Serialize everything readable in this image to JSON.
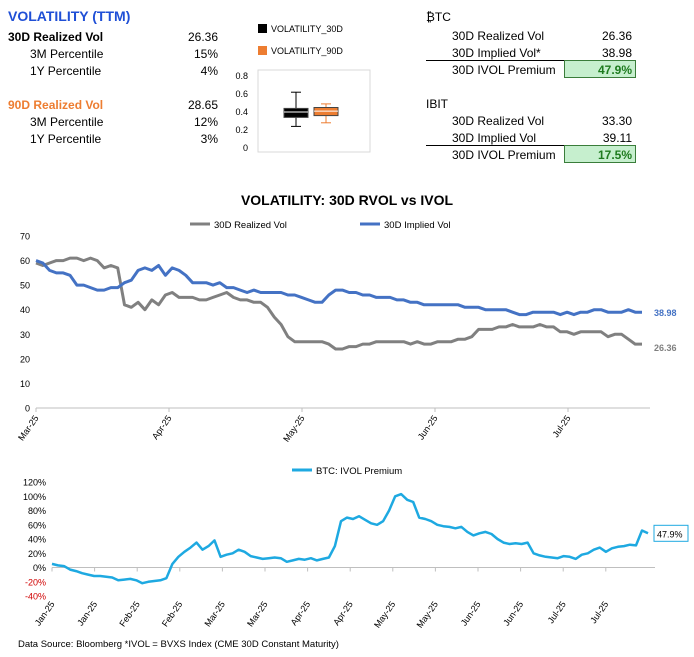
{
  "left_panel": {
    "title": "VOLATILITY (TTM)",
    "title_color": "#1f4fd6",
    "rv30": {
      "label": "30D Realized Vol",
      "value": "26.36"
    },
    "rv30_rows": [
      {
        "label": "3M Percentile",
        "value": "15%"
      },
      {
        "label": "1Y Percentile",
        "value": "4%"
      }
    ],
    "rv90": {
      "label": "90D Realized Vol",
      "value": "28.65",
      "color": "#ed7d31"
    },
    "rv90_rows": [
      {
        "label": "3M Percentile",
        "value": "12%"
      },
      {
        "label": "1Y Percentile",
        "value": "3%"
      }
    ]
  },
  "boxplot": {
    "legend": [
      "VOLATILITY_30D",
      "VOLATILITY_90D"
    ],
    "colors": [
      "#000000",
      "#ed7d31"
    ],
    "yticks": [
      "0.8",
      "0.6",
      "0.4",
      "0.2",
      "0"
    ],
    "box30": {
      "min": 0.24,
      "q1": 0.34,
      "median": 0.4,
      "q3": 0.44,
      "max": 0.62
    },
    "box90": {
      "min": 0.28,
      "q1": 0.36,
      "median": 0.41,
      "q3": 0.45,
      "max": 0.49
    }
  },
  "right_panel": {
    "btc": {
      "header": "₿TC",
      "rows": [
        {
          "label": "30D Realized Vol",
          "value": "26.36"
        },
        {
          "label": "30D Implied Vol*",
          "value": "38.98"
        }
      ],
      "premium": {
        "label": "30D IVOL Premium",
        "value": "47.9%"
      }
    },
    "ibit": {
      "header": "IBIT",
      "rows": [
        {
          "label": "30D Realized Vol",
          "value": "33.30"
        },
        {
          "label": "30D Implied Vol",
          "value": "39.11"
        }
      ],
      "premium": {
        "label": "30D IVOL Premium",
        "value": "17.5%"
      }
    },
    "premium_color": "#c6efce",
    "premium_text_color": "#1e7b1e"
  },
  "chart_data": [
    {
      "type": "line",
      "title": "VOLATILITY: 30D RVOL vs IVOL",
      "ylim": [
        0,
        70
      ],
      "yticks": [
        "0",
        "10",
        "20",
        "30",
        "40",
        "50",
        "60",
        "70"
      ],
      "xticks": [
        "Mar-25",
        "Apr-25",
        "May-25",
        "Jun-25",
        "Jul-25"
      ],
      "series": [
        {
          "name": "30D Realized Vol",
          "color": "#808080",
          "end_label": "26.36",
          "values": [
            59,
            58,
            59,
            60,
            60,
            61,
            61,
            60,
            61,
            60,
            57,
            58,
            57,
            42,
            41,
            43,
            40,
            44,
            42,
            46,
            47,
            45,
            45,
            45,
            44,
            44,
            45,
            46,
            47,
            45,
            44,
            44,
            43,
            43,
            41,
            37,
            34,
            29,
            27,
            27,
            27,
            27,
            27,
            26,
            24,
            24,
            25,
            25,
            26,
            26,
            27,
            27,
            27,
            27,
            27,
            26,
            27,
            26,
            26,
            27,
            27,
            27,
            28,
            28,
            29,
            32,
            32,
            32,
            33,
            33,
            34,
            33,
            33,
            33,
            34,
            33,
            33,
            31,
            31,
            30,
            31,
            31,
            31,
            31,
            29,
            30,
            30,
            28,
            26,
            26
          ]
        },
        {
          "name": "30D Implied Vol",
          "color": "#4472c4",
          "end_label": "38.98",
          "values": [
            60,
            59,
            56,
            55,
            55,
            54,
            50,
            50,
            49,
            48,
            48,
            49,
            49,
            51,
            52,
            56,
            57,
            56,
            58,
            54,
            57,
            56,
            54,
            51,
            51,
            51,
            50,
            51,
            49,
            49,
            48,
            47,
            48,
            47,
            47,
            47,
            47,
            46,
            46,
            45,
            44,
            43,
            43,
            46,
            48,
            48,
            47,
            47,
            46,
            46,
            45,
            45,
            45,
            44,
            44,
            43,
            43,
            42,
            42,
            42,
            42,
            42,
            42,
            41,
            41,
            41,
            40,
            40,
            40,
            40,
            39,
            38,
            38,
            39,
            39,
            39,
            39,
            38,
            39,
            38,
            39,
            39,
            40,
            40,
            39,
            39,
            39,
            40,
            39,
            39
          ]
        }
      ]
    },
    {
      "type": "line",
      "title": "",
      "ylim": [
        -40,
        120
      ],
      "yticks": [
        "120%",
        "100%",
        "80%",
        "60%",
        "40%",
        "20%",
        "0%",
        "-20%",
        "-40%"
      ],
      "xticks": [
        "Jan-25",
        "Jan-25",
        "Feb-25",
        "Feb-25",
        "Mar-25",
        "Mar-25",
        "Apr-25",
        "Apr-25",
        "May-25",
        "May-25",
        "Jun-25",
        "Jun-25",
        "Jul-25",
        "Jul-25"
      ],
      "series": [
        {
          "name": "BTC: IVOL Premium",
          "color": "#1ea9e1",
          "end_label": "47.9%",
          "values": [
            5,
            3,
            2,
            -3,
            -5,
            -8,
            -10,
            -12,
            -12,
            -13,
            -14,
            -18,
            -17,
            -16,
            -18,
            -22,
            -20,
            -19,
            -18,
            -15,
            5,
            15,
            22,
            28,
            35,
            25,
            30,
            38,
            15,
            18,
            20,
            25,
            22,
            16,
            14,
            12,
            13,
            14,
            13,
            8,
            10,
            12,
            11,
            13,
            10,
            12,
            14,
            30,
            65,
            70,
            68,
            72,
            67,
            62,
            60,
            65,
            80,
            100,
            103,
            95,
            92,
            70,
            68,
            65,
            60,
            58,
            57,
            55,
            57,
            50,
            45,
            48,
            50,
            47,
            40,
            35,
            33,
            34,
            33,
            35,
            20,
            17,
            15,
            14,
            13,
            16,
            15,
            12,
            18,
            20,
            25,
            28,
            22,
            27,
            29,
            30,
            32,
            31,
            52,
            48
          ]
        }
      ]
    }
  ],
  "footer": "Data Source: Bloomberg *IVOL = BVXS Index (CME 30D Constant Maturity)"
}
